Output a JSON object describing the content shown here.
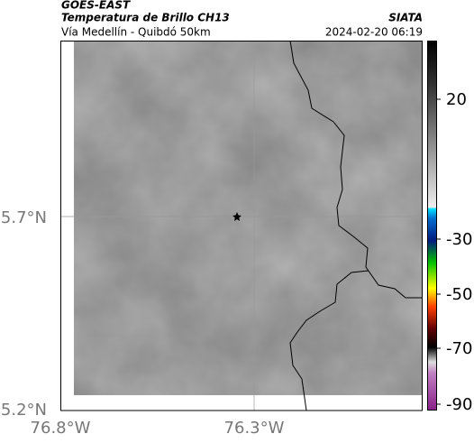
{
  "header": {
    "product": "GOES-EAST",
    "title": "Temperatura de Brillo CH13",
    "subtitle": "Vía Medellín - Quibdó 50km",
    "source": "SIATA",
    "timestamp": "2024-02-20 06:19"
  },
  "axes": {
    "yticks": [
      "5.7°N",
      "5.2°N"
    ],
    "xticks": [
      "76.8°W",
      "76.3°W"
    ]
  },
  "colorbar": {
    "ticks": [
      "20",
      "-30",
      "-50",
      "-70",
      "-90"
    ]
  }
}
